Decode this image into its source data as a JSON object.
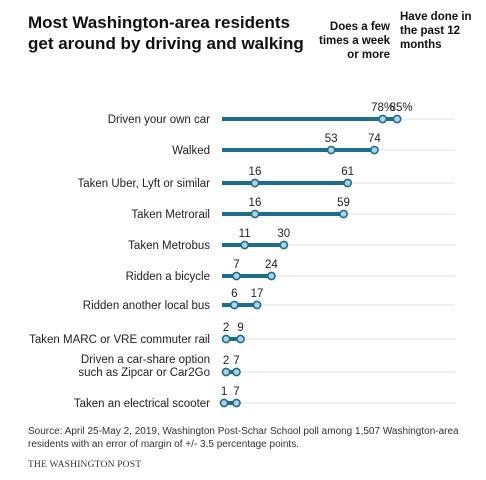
{
  "title": "Most Washington-area residents get around by driving and walking",
  "source": "Source: April 25-May 2, 2019, Washington Post-Schar School poll among 1,507 Washington-area residents with an error of margin of +/- 3.5 percentage points.",
  "credit": "THE WASHINGTON POST",
  "colors": {
    "bar": "#1d6e8e",
    "marker_fill": "#aed3e0",
    "marker_stroke": "#1d6e8e",
    "grid": "#e2e2e2"
  },
  "chart_data": {
    "type": "dot-range",
    "title": "Most Washington-area residents get around by driving and walking",
    "xlabel": "",
    "ylabel": "",
    "xlim": [
      0,
      100
    ],
    "legend": [
      "Does a few times a week or more",
      "Have done in the past 12 months"
    ],
    "legend_placement": "top-right",
    "categories": [
      [
        "Driven your own car"
      ],
      [
        "Walked"
      ],
      [
        "Taken Uber, Lyft or similar"
      ],
      [
        "Taken Metrorail"
      ],
      [
        "Taken Metrobus"
      ],
      [
        "Ridden a bicycle"
      ],
      [
        "Ridden another local bus"
      ],
      [
        "Taken MARC or VRE commuter rail"
      ],
      [
        "Driven a car-share option",
        "such as Zipcar or Car2Go"
      ],
      [
        "Taken an electrical scooter"
      ]
    ],
    "series": [
      {
        "name": "Does a few times a week or more",
        "values": [
          78,
          53,
          16,
          16,
          11,
          7,
          6,
          2,
          2,
          1
        ]
      },
      {
        "name": "Have done in the past 12 months",
        "values": [
          85,
          74,
          61,
          59,
          30,
          24,
          17,
          9,
          7,
          7
        ]
      }
    ],
    "value_labels": {
      "weekly": [
        "78%",
        "53",
        "16",
        "16",
        "11",
        "7",
        "6",
        "2",
        "2",
        "1"
      ],
      "yearly": [
        "85%",
        "74",
        "61",
        "59",
        "30",
        "24",
        "17",
        "9",
        "7",
        "7"
      ]
    }
  }
}
